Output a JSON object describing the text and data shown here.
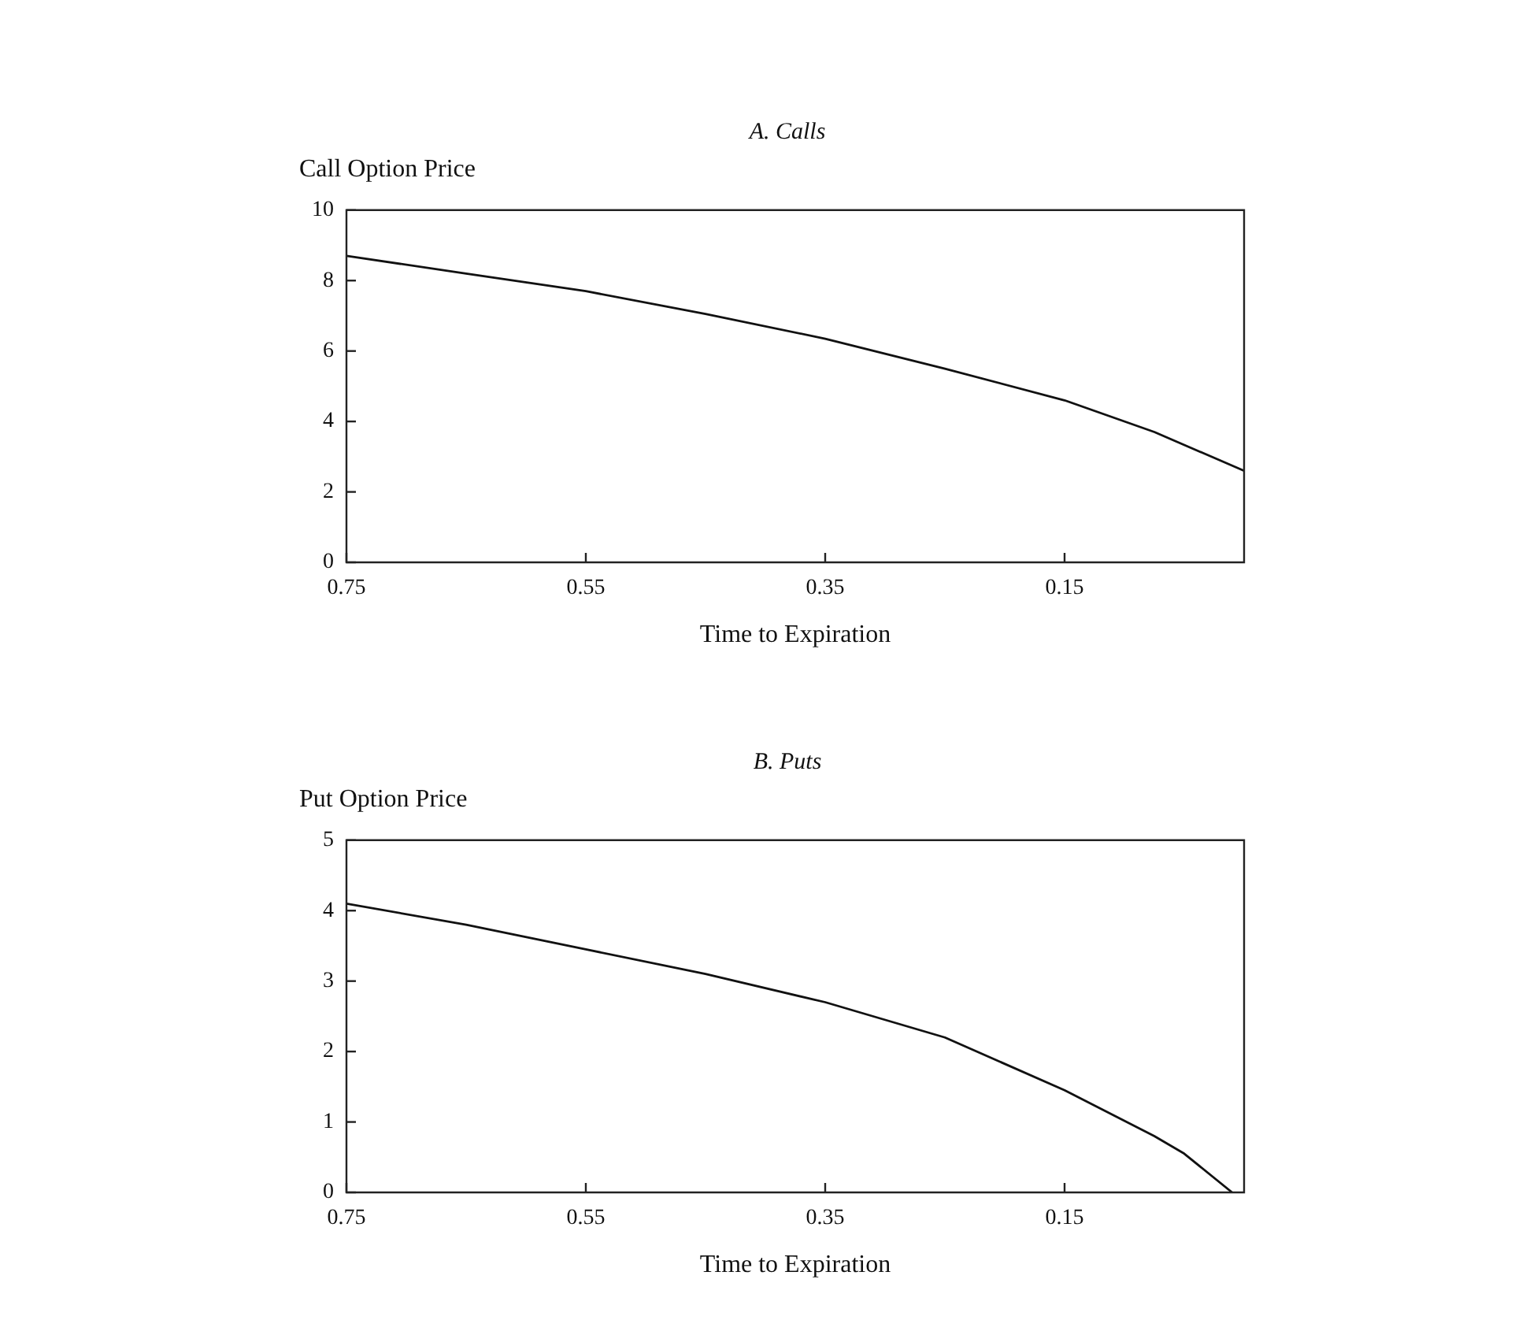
{
  "chart_data": [
    {
      "type": "line",
      "title": "A. Calls",
      "ylabel": "Call Option Price",
      "xlabel": "Time to Expiration",
      "x": [
        0.75,
        0.65,
        0.55,
        0.45,
        0.35,
        0.25,
        0.15,
        0.075,
        0
      ],
      "values": [
        8.7,
        8.2,
        7.7,
        7.05,
        6.35,
        5.5,
        4.6,
        3.7,
        2.6
      ],
      "color": "#111111",
      "xlim": [
        0.75,
        0
      ],
      "xticks": [
        0.75,
        0.55,
        0.35,
        0.15
      ],
      "ylim": [
        0,
        10
      ],
      "yticks": [
        0,
        2,
        4,
        6,
        8,
        10
      ],
      "grid": false,
      "marker": "none"
    },
    {
      "type": "line",
      "title": "B. Puts",
      "ylabel": "Put Option Price",
      "xlabel": "Time to Expiration",
      "x": [
        0.75,
        0.65,
        0.55,
        0.45,
        0.35,
        0.25,
        0.15,
        0.075,
        0.05,
        0.01
      ],
      "values": [
        4.1,
        3.8,
        3.45,
        3.1,
        2.7,
        2.2,
        1.45,
        0.8,
        0.55,
        0
      ],
      "color": "#111111",
      "xlim": [
        0.75,
        0
      ],
      "xticks": [
        0.75,
        0.55,
        0.35,
        0.15
      ],
      "ylim": [
        0,
        5
      ],
      "yticks": [
        0,
        1,
        2,
        3,
        4,
        5
      ],
      "grid": false,
      "marker": "none"
    }
  ]
}
